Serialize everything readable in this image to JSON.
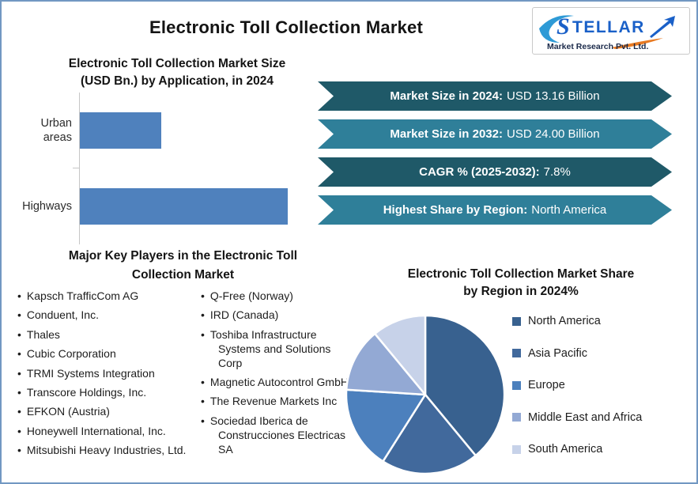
{
  "page": {
    "border_color": "#7298c2",
    "background": "#ffffff"
  },
  "header": {
    "title": "Electronic Toll Collection Market"
  },
  "logo": {
    "brand": "STELLAR",
    "subtitle": "Market Research Pvt. Ltd.",
    "brand_color": "#1a60c8",
    "swoosh_color": "#2e9ad6",
    "arrow_color": "#1a60c8",
    "accent_orange": "#e87a22",
    "subtitle_color": "#1b2a4a"
  },
  "banners": [
    {
      "label": "Market Size in 2024:",
      "value": "USD 13.16 Billion",
      "color": "#1f5968"
    },
    {
      "label": "Market Size in 2032:",
      "value": "USD 24.00 Billion",
      "color": "#2f7f99"
    },
    {
      "label": "CAGR % (2025-2032):",
      "value": "7.8%",
      "color": "#1f5968"
    },
    {
      "label": "Highest Share by Region:",
      "value": "North America",
      "color": "#2f7f99"
    }
  ],
  "players": {
    "title_line1": "Major Key Players in the Electronic Toll",
    "title_line2": "Collection Market",
    "bullet": "•",
    "column1": [
      "Kapsch TrafficCom AG",
      "Conduent, Inc.",
      "Thales",
      "Cubic Corporation",
      "TRMI Systems Integration",
      "Transcore Holdings, Inc.",
      "EFKON (Austria)",
      "Honeywell International, Inc.",
      "Mitsubishi Heavy Industries, Ltd."
    ],
    "column2": [
      "Q-Free (Norway)",
      "IRD (Canada)",
      "Toshiba Infrastructure Systems and Solutions Corp",
      "Magnetic Autocontrol GmbH",
      "The Revenue Markets Inc",
      "Sociedad Iberica de Construcciones Electricas SA"
    ]
  },
  "chart_data": [
    {
      "type": "bar",
      "orientation": "horizontal",
      "title_line1": "Electronic Toll Collection Market Size",
      "title_line2": "(USD Bn.) by Application, in 2024",
      "categories": [
        "Urban areas",
        "Highways"
      ],
      "values": [
        3.7,
        9.5
      ],
      "unit": "USD Bn.",
      "xlim": [
        0,
        11
      ],
      "bar_color": "#4f81bd",
      "axis_color": "#c6c6c6",
      "grid": false
    },
    {
      "type": "pie",
      "title_line1": "Electronic Toll Collection Market Share",
      "title_line2": "by Region in 2024%",
      "labels": [
        "North America",
        "Asia Pacific",
        "Europe",
        "Middle East and Africa",
        "South America"
      ],
      "values": [
        39,
        20,
        17,
        13,
        11
      ],
      "colors": [
        "#38618f",
        "#41699c",
        "#4c80bd",
        "#93a9d4",
        "#c7d2e9"
      ],
      "start_angle_deg": 0,
      "direction": "clockwise",
      "slice_gap_color": "#ffffff",
      "legend_position": "right"
    }
  ]
}
